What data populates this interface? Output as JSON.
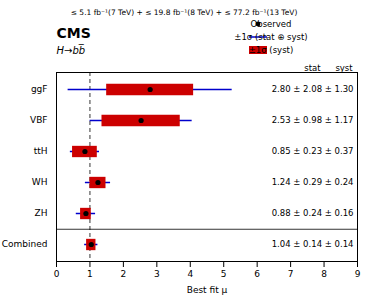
{
  "chart_data": {
    "type": "errorbar",
    "title": "≤ 5.1 fb⁻¹(7 TeV) + ≤ 19.8 fb⁻¹(8 TeV) + ≤ 77.2 fb⁻¹(13 TeV)",
    "annotations": [
      "CMS",
      "H→bb̅"
    ],
    "column_headers": [
      "stat",
      "syst"
    ],
    "xlabel": "Best fit μ",
    "xlim": [
      0,
      9
    ],
    "xticks": [
      0,
      1,
      2,
      3,
      4,
      5,
      6,
      7,
      8,
      9
    ],
    "categories": [
      "ggF",
      "VBF",
      "ttH",
      "WH",
      "ZH",
      "Combined"
    ],
    "series": [
      {
        "name": "Observed",
        "type": "scatter",
        "color": "#000000",
        "marker": "o",
        "values": [
          2.8,
          2.53,
          0.85,
          1.24,
          0.88,
          1.04
        ],
        "value_labels": [
          "2.80 ± 2.08 ± 1.30",
          "2.53 ± 0.98 ± 1.17",
          "0.85 ± 0.23 ± 0.37",
          "1.24 ± 0.29 ± 0.24",
          "0.88 ± 0.24 ± 0.16",
          "1.04 ± 0.14 ± 0.14"
        ]
      },
      {
        "name": "±1σ (stat ⊕ syst)",
        "type": "errorbar",
        "color": "#0000cc",
        "values": [
          2.8,
          2.53,
          0.85,
          1.24,
          0.88,
          1.04
        ],
        "errors": [
          2.4528,
          1.5262,
          0.4357,
          0.3764,
          0.2884,
          0.198
        ]
      },
      {
        "name": "±1σ (syst)",
        "type": "bar",
        "color": "#cc0000",
        "values": [
          2.8,
          2.53,
          0.85,
          1.24,
          0.88,
          1.04
        ],
        "errors": [
          1.3,
          1.17,
          0.37,
          0.24,
          0.16,
          0.14
        ]
      }
    ],
    "reference_line": 1.0,
    "data_labels": true,
    "legend": "upper right",
    "grid": false
  }
}
